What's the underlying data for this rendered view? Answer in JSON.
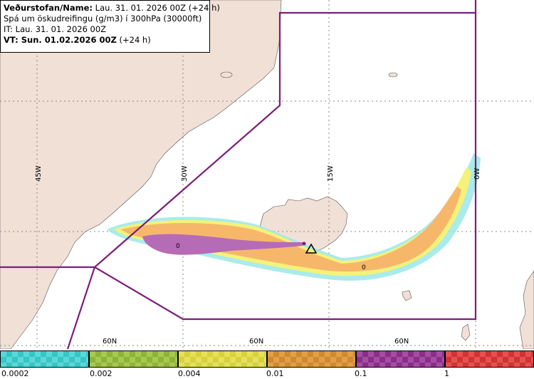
{
  "info": {
    "source_label": "Veðurstofan/Name:",
    "source_value": "Lau. 31. 01. 2026 00Z (+24 h)",
    "forecast_desc": "Spá um öskudreifingu (g/m3) í 300hPa (30000ft)",
    "it_line": "IT: Lau. 31. 01. 2026 00Z",
    "vt_label": "VT: Sun. 01.02.2026 00Z",
    "vt_suffix": " (+24 h)"
  },
  "map": {
    "longitude_labels": [
      "45W",
      "30W",
      "15W",
      "0W"
    ],
    "latitude_labels": [
      "60N",
      "60N",
      "60N"
    ],
    "concentration_labels": [
      "0",
      "0"
    ],
    "colors": {
      "land": "#f0e0d6",
      "grid": "#888888",
      "boundary": "#7a1f7a",
      "ash_low": "#9be8e8",
      "ash_mid": "#f4f27a",
      "ash_high": "#f6b76b",
      "ash_very_high": "#b66bb6",
      "volcano_marker": "#000000"
    }
  },
  "legend": {
    "bins": [
      {
        "color": "#35c6c6",
        "alt": "#5ad8d8"
      },
      {
        "color": "#8fb33a",
        "alt": "#a6c94e"
      },
      {
        "color": "#d8d23a",
        "alt": "#e6e05a"
      },
      {
        "color": "#d08a2e",
        "alt": "#e09f48"
      },
      {
        "color": "#8a2e8a",
        "alt": "#a34ea3"
      },
      {
        "color": "#d33232",
        "alt": "#e65050"
      }
    ],
    "labels": [
      "0.0002",
      "0.002",
      "0.004",
      "0.01",
      "0.1",
      "1"
    ]
  }
}
